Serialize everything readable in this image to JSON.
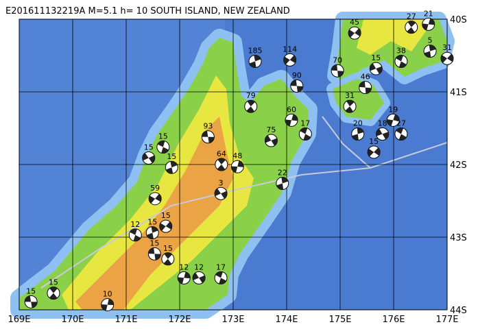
{
  "title": "E201611132219A  M=5.1  h= 10 SOUTH ISLAND, NEW ZEALAND",
  "lonlim": [
    169,
    177
  ],
  "latlim": [
    -40,
    -44
  ],
  "lonticks": [
    {
      "value": 169,
      "label": "169E"
    },
    {
      "value": 170,
      "label": "170E"
    },
    {
      "value": 171,
      "label": "171E"
    },
    {
      "value": 172,
      "label": "172E"
    },
    {
      "value": 173,
      "label": "173E"
    },
    {
      "value": 174,
      "label": "174E"
    },
    {
      "value": 175,
      "label": "175E"
    },
    {
      "value": 176,
      "label": "176E"
    },
    {
      "value": 177,
      "label": "177E"
    }
  ],
  "latticks": [
    {
      "value": -40,
      "label": "40S"
    },
    {
      "value": -41,
      "label": "41S"
    },
    {
      "value": -42,
      "label": "42S"
    },
    {
      "value": -43,
      "label": "43S"
    },
    {
      "value": -44,
      "label": "44S"
    }
  ],
  "events": [
    {
      "label": "15",
      "lon": 169.22,
      "lat": -43.89
    },
    {
      "label": "15",
      "lon": 169.64,
      "lat": -43.77
    },
    {
      "label": "10",
      "lon": 170.65,
      "lat": -43.93
    },
    {
      "label": "15",
      "lon": 171.42,
      "lat": -41.91
    },
    {
      "label": "15",
      "lon": 171.69,
      "lat": -41.76
    },
    {
      "label": "15",
      "lon": 171.85,
      "lat": -42.04
    },
    {
      "label": "59",
      "lon": 171.54,
      "lat": -42.47
    },
    {
      "label": "93",
      "lon": 172.53,
      "lat": -41.62
    },
    {
      "label": "64",
      "lon": 172.78,
      "lat": -42.0
    },
    {
      "label": "48",
      "lon": 173.08,
      "lat": -42.03
    },
    {
      "label": "3",
      "lon": 172.77,
      "lat": -42.4
    },
    {
      "label": "12",
      "lon": 171.17,
      "lat": -42.97
    },
    {
      "label": "15",
      "lon": 171.49,
      "lat": -42.94
    },
    {
      "label": "15",
      "lon": 171.74,
      "lat": -42.85
    },
    {
      "label": "15",
      "lon": 171.53,
      "lat": -43.23
    },
    {
      "label": "15",
      "lon": 171.78,
      "lat": -43.3
    },
    {
      "label": "12",
      "lon": 172.08,
      "lat": -43.56
    },
    {
      "label": "12",
      "lon": 172.36,
      "lat": -43.56
    },
    {
      "label": "17",
      "lon": 172.77,
      "lat": -43.56
    },
    {
      "label": "185",
      "lon": 173.41,
      "lat": -40.58
    },
    {
      "label": "114",
      "lon": 174.06,
      "lat": -40.56
    },
    {
      "label": "90",
      "lon": 174.19,
      "lat": -40.92
    },
    {
      "label": "79",
      "lon": 173.33,
      "lat": -41.2
    },
    {
      "label": "60",
      "lon": 174.09,
      "lat": -41.39
    },
    {
      "label": "75",
      "lon": 173.71,
      "lat": -41.67
    },
    {
      "label": "17",
      "lon": 174.35,
      "lat": -41.58
    },
    {
      "label": "22",
      "lon": 173.92,
      "lat": -42.26
    },
    {
      "label": "45",
      "lon": 175.27,
      "lat": -40.19
    },
    {
      "label": "70",
      "lon": 174.95,
      "lat": -40.71
    },
    {
      "label": "27",
      "lon": 176.33,
      "lat": -40.11
    },
    {
      "label": "21",
      "lon": 176.65,
      "lat": -40.07
    },
    {
      "label": "15",
      "lon": 175.67,
      "lat": -40.68
    },
    {
      "label": "38",
      "lon": 176.14,
      "lat": -40.58
    },
    {
      "label": "5",
      "lon": 176.68,
      "lat": -40.44
    },
    {
      "label": "31",
      "lon": 177.0,
      "lat": -40.54
    },
    {
      "label": "46",
      "lon": 175.47,
      "lat": -40.94
    },
    {
      "label": "31",
      "lon": 175.18,
      "lat": -41.2
    },
    {
      "label": "19",
      "lon": 175.99,
      "lat": -41.39
    },
    {
      "label": "18",
      "lon": 175.79,
      "lat": -41.58
    },
    {
      "label": "27",
      "lon": 176.14,
      "lat": -41.58
    },
    {
      "label": "20",
      "lon": 175.33,
      "lat": -41.58
    },
    {
      "label": "15",
      "lon": 175.63,
      "lat": -41.83
    }
  ]
}
